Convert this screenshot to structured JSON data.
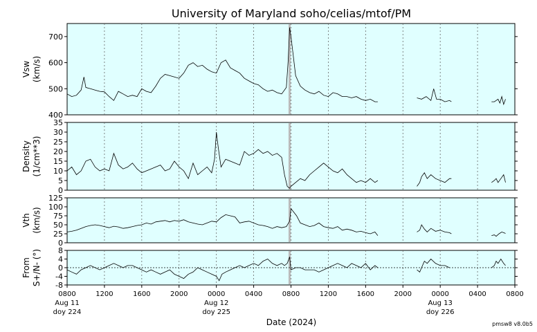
{
  "chart_data": {
    "type": "line",
    "title": "University of Maryland  soho/celias/mtof/PM",
    "xlabel": "Date (2024)",
    "version": "pmsw8 v8.0b5",
    "x_range_hours": [
      0,
      48
    ],
    "x_ticks": [
      "0800",
      "1200",
      "1600",
      "2000",
      "0000",
      "0400",
      "0800",
      "1200",
      "1600",
      "2000",
      "0000",
      "0400",
      "0800"
    ],
    "date_labels": [
      {
        "hour": 0,
        "date": "Aug 11",
        "doy": "doy 224"
      },
      {
        "hour": 16,
        "date": "Aug 12",
        "doy": "doy 225"
      },
      {
        "hour": 40,
        "date": "Aug 13",
        "doy": "doy 226"
      }
    ],
    "marker_hour": 23.85,
    "panels": [
      {
        "id": "vsw",
        "ylabel": [
          "Vsw",
          "(km/s)"
        ],
        "ylim": [
          400,
          750
        ],
        "yticks": [
          "700",
          "600",
          "500",
          "400"
        ],
        "ytick_values": [
          700,
          600,
          500,
          400
        ],
        "zero_line": false,
        "segments": [
          {
            "x": [
              0,
              0.5,
              1,
              1.5,
              1.8,
              2,
              2.5,
              3,
              3.5,
              4,
              4.5,
              5,
              5.5,
              6,
              6.5,
              7,
              7.5,
              8,
              8.5,
              9,
              9.5,
              10,
              10.5,
              11,
              11.5,
              12,
              12.5,
              13,
              13.5,
              14,
              14.5,
              15,
              15.5,
              16,
              16.5,
              17,
              17.5,
              18,
              18.5,
              19,
              19.5,
              20,
              20.5,
              21,
              21.5,
              22,
              22.5,
              23,
              23.5,
              23.7,
              23.85,
              24,
              24.2,
              24.5,
              25,
              25.5,
              26,
              26.5,
              27,
              27.5,
              28,
              28.5,
              29,
              29.5,
              30,
              30.5,
              31,
              31.5,
              32,
              32.5,
              33,
              33.3
            ],
            "y": [
              480,
              470,
              475,
              495,
              545,
              505,
              500,
              495,
              490,
              488,
              470,
              455,
              490,
              480,
              470,
              475,
              470,
              500,
              490,
              485,
              510,
              540,
              555,
              550,
              545,
              540,
              560,
              590,
              600,
              585,
              590,
              575,
              565,
              560,
              600,
              610,
              580,
              570,
              560,
              540,
              530,
              520,
              515,
              500,
              490,
              495,
              485,
              480,
              505,
              610,
              735,
              700,
              640,
              550,
              510,
              495,
              485,
              480,
              490,
              475,
              470,
              485,
              480,
              470,
              470,
              465,
              470,
              460,
              455,
              460,
              450,
              450
            ]
          },
          {
            "x": [
              37.5,
              38,
              38.5,
              39,
              39.3,
              39.6,
              40,
              40.5,
              41,
              41.2
            ],
            "y": [
              465,
              460,
              470,
              455,
              500,
              460,
              460,
              450,
              455,
              450
            ]
          },
          {
            "x": [
              45.5,
              45.8,
              46,
              46.2,
              46.4,
              46.6,
              46.8,
              47
            ],
            "y": [
              450,
              450,
              455,
              460,
              445,
              470,
              440,
              460
            ]
          }
        ]
      },
      {
        "id": "density",
        "ylabel": [
          "Density",
          "(1/cm**3)"
        ],
        "ylim": [
          0,
          35
        ],
        "yticks": [
          "35",
          "30",
          "25",
          "20",
          "15",
          "10",
          "5",
          "0"
        ],
        "ytick_values": [
          35,
          30,
          25,
          20,
          15,
          10,
          5,
          0
        ],
        "zero_line": false,
        "segments": [
          {
            "x": [
              0,
              0.5,
              1,
              1.5,
              2,
              2.5,
              3,
              3.5,
              4,
              4.5,
              5,
              5.5,
              6,
              6.5,
              7,
              7.5,
              8,
              8.5,
              9,
              9.5,
              10,
              10.5,
              11,
              11.5,
              12,
              12.5,
              13,
              13.5,
              14,
              14.5,
              15,
              15.5,
              15.8,
              16,
              16.2,
              16.5,
              17,
              17.5,
              18,
              18.5,
              19,
              19.5,
              20,
              20.5,
              21,
              21.5,
              22,
              22.5,
              23,
              23.3,
              23.6,
              23.85,
              24,
              24.5,
              25,
              25.5,
              26,
              26.5,
              27,
              27.5,
              28,
              28.5,
              29,
              29.5,
              30,
              30.5,
              31,
              31.5,
              32,
              32.5,
              33,
              33.3
            ],
            "y": [
              10,
              12,
              8,
              10,
              15,
              16,
              12,
              10,
              11,
              10,
              19,
              13,
              11,
              12,
              14,
              11,
              9,
              10,
              11,
              12,
              13,
              10,
              11,
              15,
              12,
              10,
              6,
              14,
              8,
              10,
              12,
              9,
              16,
              30,
              22,
              12,
              16,
              15,
              14,
              13,
              20,
              18,
              19,
              21,
              19,
              20,
              18,
              19,
              17,
              8,
              2,
              1,
              2,
              4,
              6,
              5,
              8,
              10,
              12,
              14,
              12,
              10,
              9,
              11,
              8,
              6,
              4,
              5,
              4,
              6,
              4,
              5
            ]
          },
          {
            "x": [
              37.5,
              37.8,
              38,
              38.3,
              38.6,
              39,
              39.5,
              40,
              40.5,
              41,
              41.2
            ],
            "y": [
              2,
              4,
              7,
              9,
              6,
              8,
              6,
              5,
              4,
              6,
              6
            ]
          },
          {
            "x": [
              45.5,
              45.8,
              46,
              46.2,
              46.5,
              46.8,
              47
            ],
            "y": [
              4,
              5,
              6,
              4,
              6,
              8,
              4
            ]
          }
        ]
      },
      {
        "id": "vth",
        "ylabel": [
          "Vth",
          "(km/s)"
        ],
        "ylim": [
          0,
          125
        ],
        "yticks": [
          "125",
          "100",
          "75",
          "50",
          "25",
          "0"
        ],
        "ytick_values": [
          125,
          100,
          75,
          50,
          25,
          0
        ],
        "zero_line": false,
        "segments": [
          {
            "x": [
              0,
              0.5,
              1,
              1.5,
              2,
              2.5,
              3,
              3.5,
              4,
              4.5,
              5,
              5.5,
              6,
              6.5,
              7,
              7.5,
              8,
              8.5,
              9,
              9.5,
              10,
              10.5,
              11,
              11.5,
              12,
              12.5,
              13,
              13.5,
              14,
              14.5,
              15,
              15.5,
              16,
              16.5,
              17,
              17.5,
              18,
              18.5,
              19,
              19.5,
              20,
              20.5,
              21,
              21.5,
              22,
              22.5,
              23,
              23.5,
              23.85,
              24,
              24.3,
              24.6,
              25,
              25.5,
              26,
              26.5,
              27,
              27.5,
              28,
              28.5,
              29,
              29.5,
              30,
              30.5,
              31,
              31.5,
              32,
              32.5,
              33,
              33.3
            ],
            "y": [
              30,
              32,
              35,
              40,
              45,
              48,
              50,
              48,
              45,
              42,
              46,
              44,
              40,
              42,
              45,
              48,
              50,
              55,
              52,
              58,
              60,
              62,
              58,
              62,
              60,
              64,
              58,
              55,
              52,
              50,
              55,
              60,
              58,
              70,
              78,
              75,
              72,
              55,
              58,
              60,
              55,
              50,
              48,
              45,
              40,
              45,
              42,
              45,
              60,
              95,
              85,
              75,
              55,
              50,
              45,
              48,
              55,
              45,
              42,
              40,
              45,
              35,
              38,
              35,
              30,
              32,
              28,
              25,
              30,
              20
            ]
          },
          {
            "x": [
              37.5,
              37.8,
              38,
              38.3,
              38.6,
              39,
              39.5,
              40,
              40.5,
              41,
              41.2
            ],
            "y": [
              30,
              35,
              50,
              38,
              30,
              40,
              32,
              35,
              30,
              28,
              25
            ]
          },
          {
            "x": [
              45.5,
              45.8,
              46,
              46.3,
              46.6,
              46.8,
              47
            ],
            "y": [
              20,
              22,
              18,
              25,
              30,
              28,
              26
            ]
          }
        ]
      },
      {
        "id": "from",
        "ylabel": [
          "From",
          "S+/N- (°)"
        ],
        "ylim": [
          -8,
          8
        ],
        "yticks": [
          "8",
          "4",
          "0",
          "-4",
          "-8"
        ],
        "ytick_values": [
          8,
          4,
          0,
          -4,
          -8
        ],
        "zero_line": true,
        "segments": [
          {
            "x": [
              0,
              0.5,
              1,
              1.5,
              2,
              2.5,
              3,
              3.5,
              4,
              4.5,
              5,
              5.5,
              6,
              6.5,
              7,
              7.5,
              8,
              8.5,
              9,
              9.5,
              10,
              10.5,
              11,
              11.5,
              12,
              12.5,
              13,
              13.5,
              14,
              14.5,
              15,
              15.5,
              16,
              16.3,
              16.6,
              17,
              17.5,
              18,
              18.5,
              19,
              19.5,
              20,
              20.5,
              21,
              21.5,
              22,
              22.5,
              23,
              23.3,
              23.6,
              23.85,
              24,
              24.5,
              25,
              25.5,
              26,
              26.5,
              27,
              27.5,
              28,
              28.5,
              29,
              29.5,
              30,
              30.5,
              31,
              31.5,
              32,
              32.5,
              33,
              33.3
            ],
            "y": [
              -1,
              -2,
              -3,
              -1,
              0,
              1,
              0,
              -1,
              0,
              1,
              2,
              1,
              0,
              1,
              1,
              0,
              -1,
              -2,
              -1,
              -2,
              -3,
              -2,
              -1,
              -3,
              -4,
              -5,
              -3,
              -2,
              0,
              -1,
              -2,
              -3,
              -4,
              -6,
              -3,
              -2,
              -1,
              0,
              1,
              0,
              1,
              2,
              1,
              3,
              4,
              2,
              1,
              2,
              1,
              2,
              5,
              -1,
              0,
              0,
              -1,
              -1,
              -1,
              -2,
              -1,
              0,
              1,
              2,
              1,
              0,
              2,
              1,
              0,
              2,
              -1,
              1,
              0
            ]
          },
          {
            "x": [
              37.5,
              37.8,
              38,
              38.3,
              38.6,
              39,
              39.5,
              40,
              40.5,
              41
            ],
            "y": [
              -1,
              -2,
              0,
              3,
              2,
              4,
              2,
              1,
              1,
              0
            ]
          },
          {
            "x": [
              45.5,
              45.8,
              46,
              46.2,
              46.5,
              46.8,
              47
            ],
            "y": [
              0,
              1,
              3,
              2,
              4,
              2,
              1
            ]
          }
        ]
      }
    ]
  }
}
